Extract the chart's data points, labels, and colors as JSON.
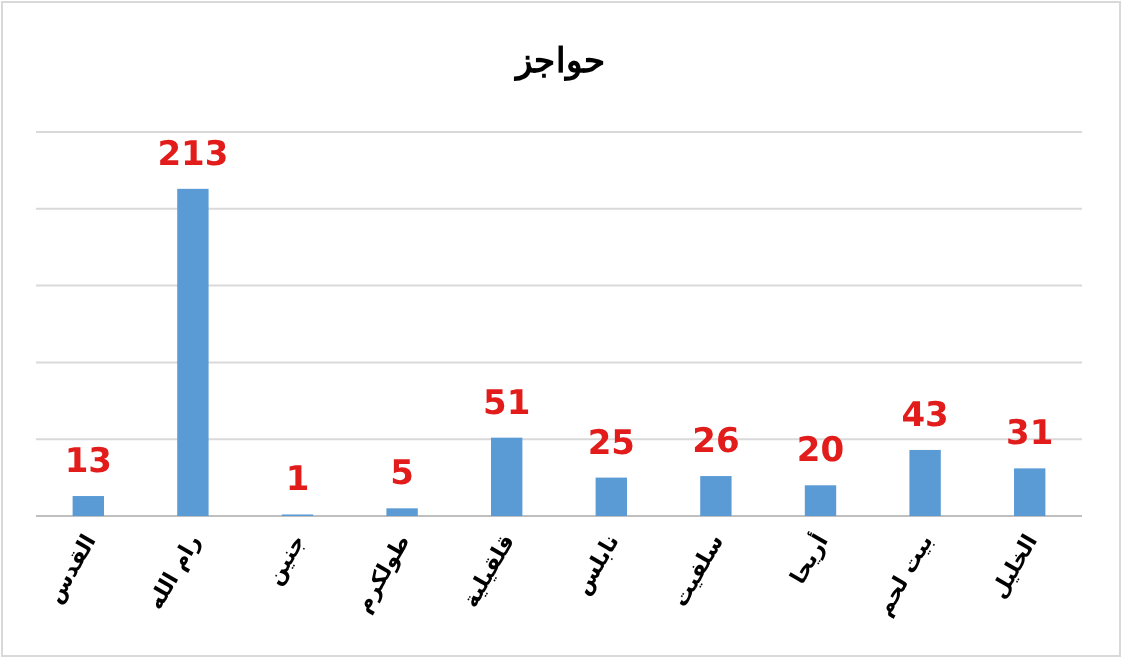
{
  "chart_data": {
    "type": "bar",
    "title": "حواجز",
    "categories": [
      "القدس",
      "رام الله",
      "جنين",
      "طولكرم",
      "قلقيلية",
      "نابلس",
      "سلفيت",
      "أريحا",
      "بيت لحم",
      "الخليل"
    ],
    "values": [
      13,
      213,
      1,
      5,
      51,
      25,
      26,
      20,
      43,
      31
    ],
    "color": "#5b9bd5",
    "ylim": [
      0,
      250
    ],
    "yticks": [
      {
        "value": 0,
        "label": null
      },
      {
        "value": 50,
        "label": null
      },
      {
        "value": 100,
        "label": null
      },
      {
        "value": 150,
        "label": null
      },
      {
        "value": 200,
        "label": null
      },
      {
        "value": 250,
        "label": null
      }
    ],
    "grid": "y",
    "tick_labels": "x",
    "data_labels": true
  }
}
